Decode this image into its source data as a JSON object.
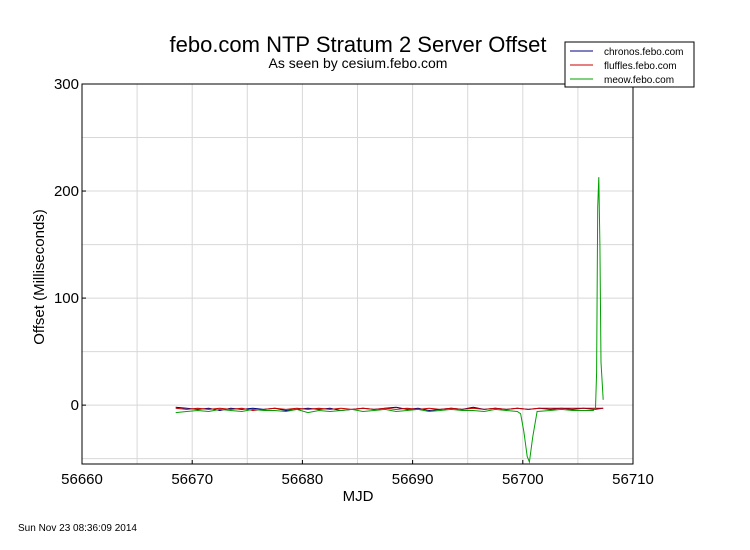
{
  "chart_data": {
    "type": "line",
    "title": "febo.com NTP Stratum 2 Server Offset",
    "subtitle": "As seen by cesium.febo.com",
    "xlabel": "MJD",
    "ylabel": "Offset (Milliseconds)",
    "xlim": [
      56660,
      56710
    ],
    "ylim": [
      -55,
      300
    ],
    "x_ticks": [
      56660,
      56670,
      56680,
      56690,
      56700,
      56710
    ],
    "y_ticks": [
      0,
      100,
      200,
      300
    ],
    "grid": true,
    "legend_position": "top-right",
    "series": [
      {
        "name": "chronos.febo.com",
        "color": "#000080",
        "x": [
          56668.5,
          56669.5,
          56670.5,
          56671.5,
          56672.5,
          56673.5,
          56674.5,
          56675.5,
          56676.5,
          56677.5,
          56678.5,
          56679.5,
          56680.5,
          56681.5,
          56682.5,
          56683.5,
          56684.5,
          56685.5,
          56686.5,
          56687.5,
          56688.5,
          56689.5,
          56690.5,
          56691.5,
          56692.5,
          56693.5,
          56694.5,
          56695.5,
          56696.5,
          56697.5,
          56698.5,
          56699.5,
          56700.5,
          56701.5,
          56702.5,
          56703.5,
          56704.5,
          56705.5,
          56706.5,
          56707.3
        ],
        "values": [
          -2,
          -3,
          -4,
          -3,
          -5,
          -3,
          -4,
          -3,
          -4,
          -3,
          -5,
          -4,
          -3,
          -4,
          -3,
          -5,
          -4,
          -3,
          -4,
          -3,
          -2,
          -4,
          -3,
          -5,
          -4,
          -3,
          -4,
          -2,
          -4,
          -3,
          -4,
          -3,
          -4,
          -3,
          -4,
          -3,
          -4,
          -3,
          -4,
          -3
        ]
      },
      {
        "name": "fluffles.febo.com",
        "color": "#cc0000",
        "x": [
          56668.5,
          56669.5,
          56670.5,
          56671.5,
          56672.5,
          56673.5,
          56674.5,
          56675.5,
          56676.5,
          56677.5,
          56678.5,
          56679.5,
          56680.5,
          56681.5,
          56682.5,
          56683.5,
          56684.5,
          56685.5,
          56686.5,
          56687.5,
          56688.5,
          56689.5,
          56690.5,
          56691.5,
          56692.5,
          56693.5,
          56694.5,
          56695.5,
          56696.5,
          56697.5,
          56698.5,
          56699.5,
          56700.5,
          56701.5,
          56702.5,
          56703.5,
          56704.5,
          56705.5,
          56706.5,
          56707.3
        ],
        "values": [
          -3,
          -4,
          -3,
          -4,
          -3,
          -4,
          -3,
          -5,
          -4,
          -3,
          -4,
          -3,
          -4,
          -3,
          -4,
          -3,
          -4,
          -3,
          -4,
          -3,
          -4,
          -3,
          -4,
          -3,
          -4,
          -3,
          -4,
          -3,
          -4,
          -3,
          -4,
          -3,
          -4,
          -3,
          -3,
          -3,
          -3,
          -3,
          -3,
          -3
        ]
      },
      {
        "name": "meow.febo.com",
        "color": "#00a000",
        "x": [
          56668.5,
          56669.5,
          56670.5,
          56671.5,
          56672.5,
          56673.5,
          56674.5,
          56675.5,
          56676.5,
          56677.5,
          56678.5,
          56679.5,
          56680.5,
          56681.5,
          56682.5,
          56683.5,
          56684.5,
          56685.5,
          56686.5,
          56687.5,
          56688.5,
          56689.5,
          56690.5,
          56691.5,
          56692.5,
          56693.5,
          56694.5,
          56695.5,
          56696.5,
          56697.5,
          56698.5,
          56699.5,
          56699.8,
          56700.1,
          56700.4,
          56700.6,
          56700.9,
          56701.3,
          56702.5,
          56703.5,
          56704.5,
          56705.5,
          56706.4,
          56706.6,
          56706.7,
          56706.8,
          56706.9,
          56707.0,
          56707.1,
          56707.3
        ],
        "values": [
          -7,
          -6,
          -5,
          -6,
          -4,
          -5,
          -6,
          -4,
          -5,
          -5,
          -6,
          -4,
          -7,
          -5,
          -6,
          -5,
          -4,
          -6,
          -5,
          -4,
          -6,
          -5,
          -4,
          -6,
          -5,
          -4,
          -5,
          -5,
          -6,
          -4,
          -5,
          -6,
          -8,
          -25,
          -48,
          -53,
          -30,
          -6,
          -5,
          -4,
          -5,
          -5,
          -5,
          -3,
          30,
          185,
          213,
          150,
          40,
          5
        ]
      }
    ]
  },
  "footer_timestamp": "Sun Nov 23 08:36:09 2014"
}
